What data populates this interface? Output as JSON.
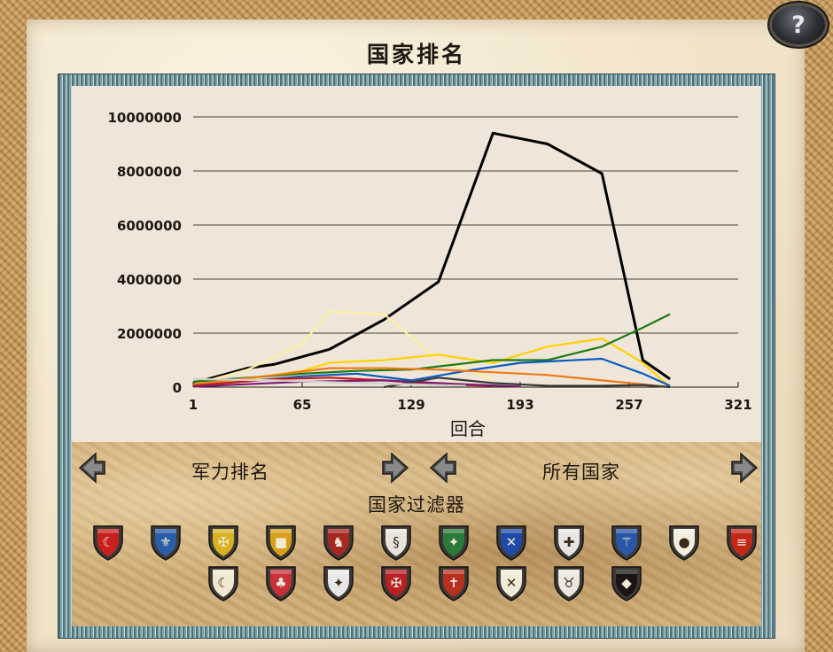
{
  "title": "国家排名",
  "help_label": "?",
  "chart_data": {
    "type": "line",
    "xlabel": "回合",
    "ylabel": "",
    "xlim": [
      1,
      321
    ],
    "ylim": [
      0,
      10000000
    ],
    "x_ticks": [
      "1",
      "65",
      "129",
      "193",
      "257",
      "321"
    ],
    "y_ticks": [
      "0",
      "2000000",
      "4000000",
      "6000000",
      "8000000",
      "10000000"
    ],
    "grid": true,
    "series": [
      {
        "color": "#000000",
        "x": [
          1,
          33,
          49,
          81,
          113,
          145,
          177,
          209,
          241,
          265,
          281
        ],
        "y": [
          150000,
          700000,
          850000,
          1400000,
          2500000,
          3900000,
          9400000,
          9000000,
          7900000,
          1000000,
          300000
        ]
      },
      {
        "color": "#fff0a0",
        "x": [
          1,
          33,
          65,
          81,
          113,
          145,
          177
        ],
        "y": [
          100000,
          650000,
          1600000,
          2800000,
          2700000,
          1000000,
          300000
        ]
      },
      {
        "color": "#ffd200",
        "x": [
          1,
          65,
          81,
          113,
          145,
          177,
          209,
          241,
          265,
          281
        ],
        "y": [
          0,
          600000,
          900000,
          1000000,
          1200000,
          900000,
          1500000,
          1800000,
          900000,
          0
        ]
      },
      {
        "color": "#1f7a12",
        "x": [
          1,
          65,
          97,
          129,
          177,
          209,
          241,
          265,
          281
        ],
        "y": [
          200000,
          500000,
          600000,
          650000,
          1000000,
          1000000,
          1500000,
          2200000,
          2700000
        ]
      },
      {
        "color": "#0b5bc0",
        "x": [
          1,
          65,
          97,
          129,
          161,
          193,
          241,
          265,
          281
        ],
        "y": [
          50000,
          400000,
          500000,
          250000,
          600000,
          900000,
          1050000,
          500000,
          50000
        ]
      },
      {
        "color": "#f07a18",
        "x": [
          1,
          49,
          81,
          113,
          145,
          177,
          209,
          241,
          265,
          281
        ],
        "y": [
          100000,
          450000,
          700000,
          700000,
          650000,
          550000,
          450000,
          250000,
          100000,
          0
        ]
      },
      {
        "color": "#c81a1a",
        "x": [
          1,
          49,
          81,
          113,
          145,
          177
        ],
        "y": [
          50000,
          300000,
          350000,
          250000,
          100000,
          50000
        ]
      },
      {
        "color": "#7a1f6e",
        "x": [
          1,
          65,
          113,
          161,
          193
        ],
        "y": [
          20000,
          200000,
          250000,
          100000,
          20000
        ]
      },
      {
        "color": "#3a3a3a",
        "x": [
          113,
          145,
          177,
          209,
          241,
          265,
          281
        ],
        "y": [
          0,
          350000,
          150000,
          50000,
          50000,
          80000,
          0
        ]
      },
      {
        "color": "#d0d0d0",
        "x": [
          1,
          49,
          97,
          129,
          161
        ],
        "y": [
          300000,
          250000,
          150000,
          100000,
          50000
        ]
      }
    ]
  },
  "controls": {
    "ranking_type": "军力排名",
    "nation_group": "所有国家",
    "filter_label": "国家过滤器"
  },
  "factions_row1": [
    {
      "name": "turks",
      "color": "#c8201e",
      "symbol": "☾"
    },
    {
      "name": "france",
      "color": "#2a5da8",
      "symbol": "⚜"
    },
    {
      "name": "hre",
      "color": "#d8b020",
      "symbol": "✠"
    },
    {
      "name": "spain",
      "color": "#d8a018",
      "symbol": "■"
    },
    {
      "name": "venice",
      "color": "#a62820",
      "symbol": "♞"
    },
    {
      "name": "milan",
      "color": "#e8e4dc",
      "symbol": "§"
    },
    {
      "name": "sicily",
      "color": "#2a7a3a",
      "symbol": "✦"
    },
    {
      "name": "scotland",
      "color": "#1f4aa8",
      "symbol": "✕"
    },
    {
      "name": "papal",
      "color": "#e8e4e4",
      "symbol": "✚"
    },
    {
      "name": "byzantium",
      "color": "#2a56a8",
      "symbol": "⚚"
    },
    {
      "name": "portugal",
      "color": "#f4eee0",
      "symbol": "●"
    },
    {
      "name": "england",
      "color": "#c22818",
      "symbol": "≡"
    }
  ],
  "factions_row2": [
    {
      "name": "egypt",
      "color": "#f0e8d0",
      "symbol": "☾"
    },
    {
      "name": "denmark",
      "color": "#c83038",
      "symbol": "♣"
    },
    {
      "name": "novgorod",
      "color": "#e8e8e8",
      "symbol": "✦"
    },
    {
      "name": "poland",
      "color": "#b82024",
      "symbol": "✠"
    },
    {
      "name": "hungary",
      "color": "#b83020",
      "symbol": "✝"
    },
    {
      "name": "moors",
      "color": "#f0ecd8",
      "symbol": "✕"
    },
    {
      "name": "mongols",
      "color": "#ece8e0",
      "symbol": "♉"
    },
    {
      "name": "rebels",
      "color": "#1a1414",
      "symbol": "◆"
    }
  ]
}
